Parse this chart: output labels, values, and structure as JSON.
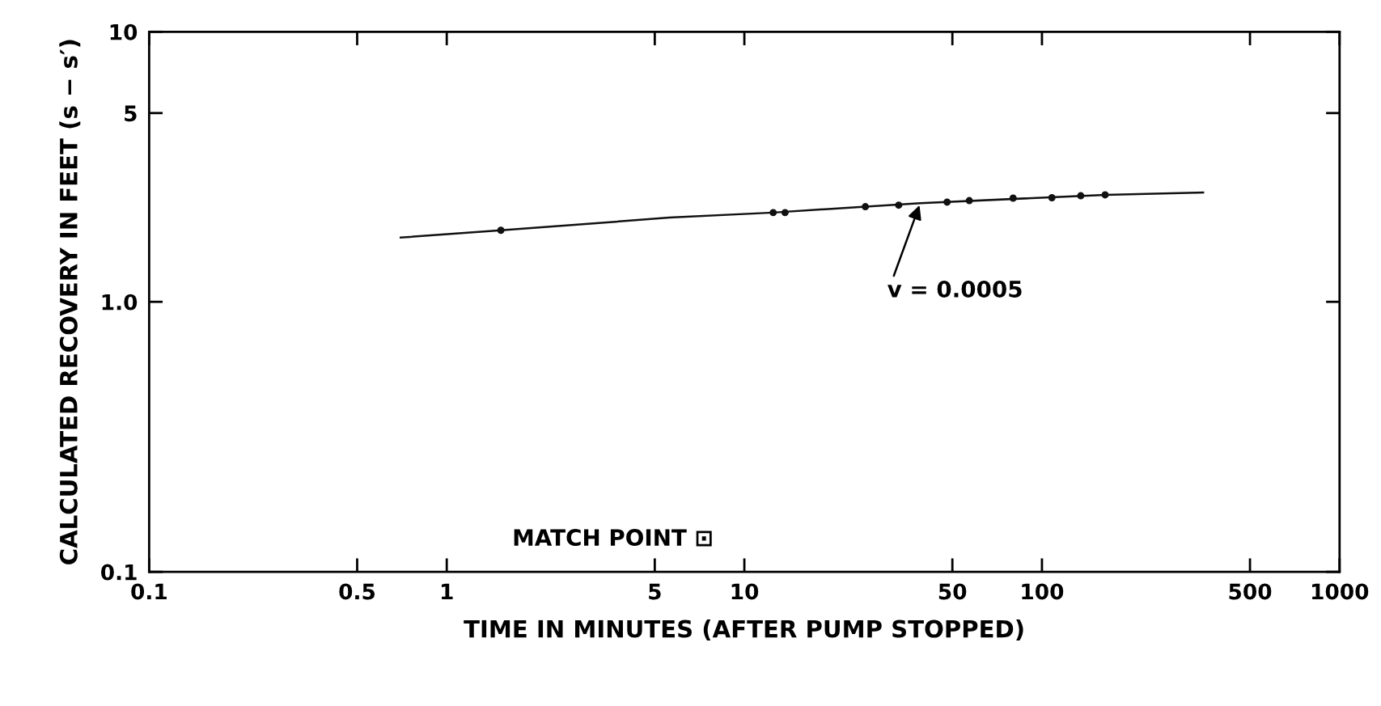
{
  "chart_data": {
    "type": "scatter",
    "xlabel": "TIME IN MINUTES (AFTER PUMP STOPPED)",
    "ylabel": "CALCULATED RECOVERY IN FEET (s − s′)",
    "log": "xy",
    "grid": false,
    "xlim": [
      0.1,
      1000
    ],
    "ylim": [
      0.1,
      10
    ],
    "xticks": [
      0.1,
      0.5,
      1,
      5,
      10,
      50,
      100,
      500,
      1000
    ],
    "yticks": [
      0.1,
      {
        "value": 1,
        "label": "1.0"
      },
      5,
      10
    ],
    "series": [
      {
        "marker": "circle",
        "color": "#111111",
        "x": [
          1.52,
          12.5,
          13.7,
          25.5,
          33,
          48,
          57,
          80,
          108,
          135,
          163
        ],
        "values": [
          1.84,
          2.14,
          2.14,
          2.25,
          2.28,
          2.34,
          2.37,
          2.42,
          2.43,
          2.47,
          2.49
        ]
      },
      {
        "type": "line",
        "color": "#111111",
        "marker": "none",
        "x": [
          0.7,
          1.52,
          5.6,
          12.5,
          39,
          163,
          348
        ],
        "values": [
          1.73,
          1.84,
          2.05,
          2.14,
          2.32,
          2.49,
          2.54
        ]
      }
    ],
    "annotations": [
      {
        "text": "v = 0.0005",
        "x": 39,
        "y": 2.32
      },
      "MATCH POINT ⊡"
    ]
  }
}
